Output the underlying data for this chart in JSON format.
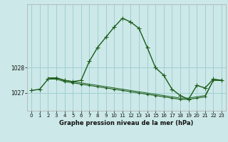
{
  "xlabel": "Graphe pression niveau de la mer (hPa)",
  "background_color": "#cce8e8",
  "grid_color": "#99cccc",
  "line_color": "#1a5c1a",
  "ylim_min": 1026.3,
  "ylim_max": 1030.5,
  "yticks": [
    1027,
    1028
  ],
  "xlim_min": -0.5,
  "xlim_max": 23.5,
  "xticks": [
    0,
    1,
    2,
    3,
    4,
    5,
    6,
    7,
    8,
    9,
    10,
    11,
    12,
    13,
    14,
    15,
    16,
    17,
    18,
    19,
    20,
    21,
    22,
    23
  ],
  "series": [
    {
      "x": [
        0,
        1,
        2,
        3,
        4,
        5,
        6,
        7,
        8,
        9,
        10,
        11,
        12,
        13,
        14,
        15,
        16,
        17,
        18,
        19,
        20,
        21,
        22,
        23
      ],
      "y": [
        1027.1,
        1027.15,
        1027.55,
        1027.6,
        1027.5,
        1027.45,
        1027.5,
        1028.25,
        1028.8,
        1029.2,
        1029.6,
        1029.95,
        1029.8,
        1029.55,
        1028.8,
        1028.0,
        1027.7,
        1027.15,
        1026.9,
        1026.75,
        1027.3,
        1027.2,
        1027.55,
        1027.5
      ],
      "marker": "+",
      "linewidth": 1.0,
      "markersize": 4
    },
    {
      "x": [
        2,
        3,
        4,
        5,
        6,
        7,
        8,
        9,
        10,
        11,
        12,
        13,
        14,
        15,
        16,
        17,
        18,
        19,
        20,
        21,
        22,
        23
      ],
      "y": [
        1027.55,
        1027.55,
        1027.45,
        1027.4,
        1027.35,
        1027.3,
        1027.25,
        1027.2,
        1027.15,
        1027.1,
        1027.05,
        1027.0,
        1026.95,
        1026.9,
        1026.85,
        1026.8,
        1026.75,
        1026.75,
        1026.8,
        1026.85,
        1027.5,
        1027.5
      ],
      "marker": "+",
      "linewidth": 0.8,
      "markersize": 3
    },
    {
      "x": [
        2,
        3,
        4,
        5,
        6,
        7,
        8,
        9,
        10,
        11,
        12,
        13,
        14,
        15,
        16,
        17,
        18,
        19,
        20,
        21,
        22,
        23
      ],
      "y": [
        1027.6,
        1027.6,
        1027.5,
        1027.45,
        1027.4,
        1027.35,
        1027.3,
        1027.25,
        1027.2,
        1027.15,
        1027.1,
        1027.05,
        1027.0,
        1026.95,
        1026.9,
        1026.85,
        1026.8,
        1026.8,
        1026.85,
        1026.9,
        1027.5,
        1027.5
      ],
      "marker": null,
      "linewidth": 0.7,
      "markersize": 0
    }
  ]
}
